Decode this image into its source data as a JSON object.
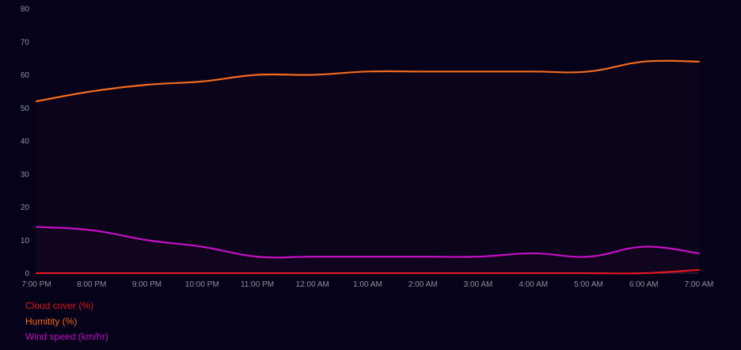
{
  "chart_data": {
    "type": "line",
    "categories": [
      "7:00 PM",
      "8:00 PM",
      "9:00 PM",
      "10:00 PM",
      "11:00 PM",
      "12:00 AM",
      "1:00 AM",
      "2:00 AM",
      "3:00 AM",
      "4:00 AM",
      "5:00 AM",
      "6:00 AM",
      "7:00 AM"
    ],
    "ylim": [
      0,
      80
    ],
    "yticks": [
      0,
      10,
      20,
      30,
      40,
      50,
      60,
      70,
      80
    ],
    "grid": false,
    "legend_position": "bottom-left",
    "series": [
      {
        "name": "Cloud cover (%)",
        "color": "#e0161c",
        "values": [
          0,
          0,
          0,
          0,
          0,
          0,
          0,
          0,
          0,
          0,
          0,
          0,
          1
        ]
      },
      {
        "name": "Humitity (%)",
        "color": "#f26b1d",
        "values": [
          52,
          55,
          57,
          58,
          60,
          60,
          61,
          61,
          61,
          61,
          61,
          64,
          64
        ]
      },
      {
        "name": "Wind speed (km/hr)",
        "color": "#c410c4",
        "values": [
          14,
          13,
          10,
          8,
          5,
          5,
          5,
          5,
          5,
          6,
          5,
          8,
          6
        ]
      }
    ]
  }
}
